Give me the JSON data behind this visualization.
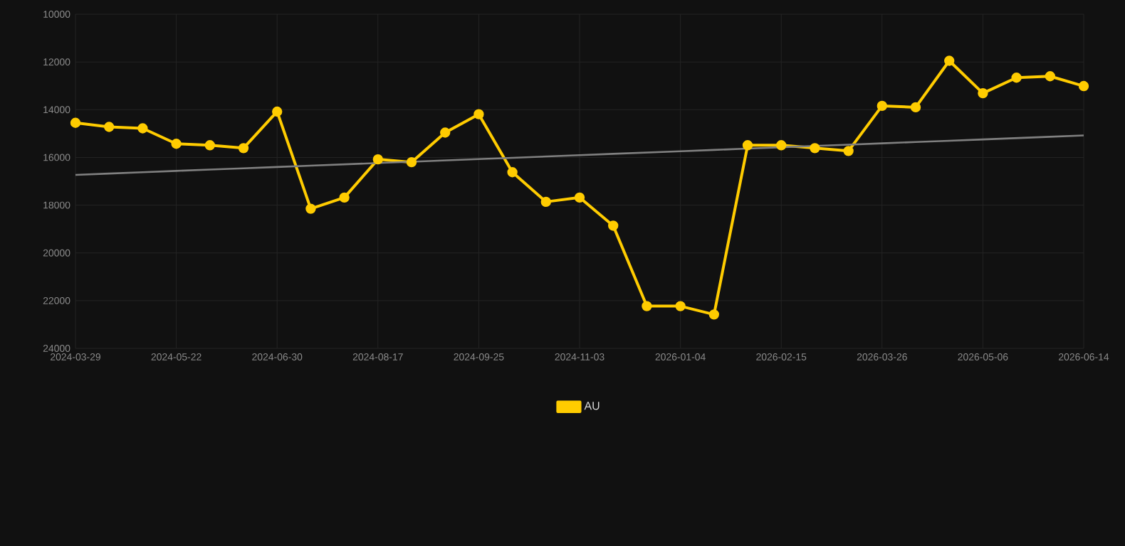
{
  "chart_data": {
    "type": "line",
    "categories": [
      "2024-03-29",
      null,
      null,
      "2024-05-22",
      null,
      null,
      "2024-06-30",
      null,
      null,
      "2024-08-17",
      null,
      null,
      "2024-09-25",
      null,
      null,
      "2024-11-03",
      null,
      null,
      "2026-01-04",
      null,
      null,
      "2026-02-15",
      null,
      null,
      "2026-03-26",
      null,
      null,
      "2026-05-06",
      null,
      null,
      "2026-06-14"
    ],
    "series": [
      {
        "name": "AU",
        "color": "#ffcc00",
        "marker": "circle",
        "values": [
          14550,
          14720,
          14780,
          15430,
          15490,
          15610,
          14080,
          18150,
          17680,
          16080,
          16200,
          14960,
          14190,
          16620,
          17860,
          17680,
          18860,
          22230,
          22230,
          22580,
          15490,
          15490,
          15610,
          15730,
          13840,
          13900,
          11950,
          13310,
          12660,
          12600,
          13010
        ]
      },
      {
        "type": "line",
        "color": "#808080",
        "marker": "none",
        "values": [
          16730,
          16675,
          16620,
          16565,
          16510,
          16455,
          16400,
          16345,
          16290,
          16235,
          16180,
          16125,
          16070,
          16015,
          15960,
          15905,
          15850,
          15795,
          15740,
          15685,
          15630,
          15575,
          15520,
          15465,
          15410,
          15355,
          15300,
          15245,
          15190,
          15135,
          15080
        ]
      }
    ],
    "ylim": [
      24000,
      10000
    ],
    "yticks": [
      10000,
      12000,
      14000,
      16000,
      18000,
      20000,
      22000,
      24000
    ],
    "grid": true,
    "legend": "bottom",
    "line_style": "solid"
  }
}
